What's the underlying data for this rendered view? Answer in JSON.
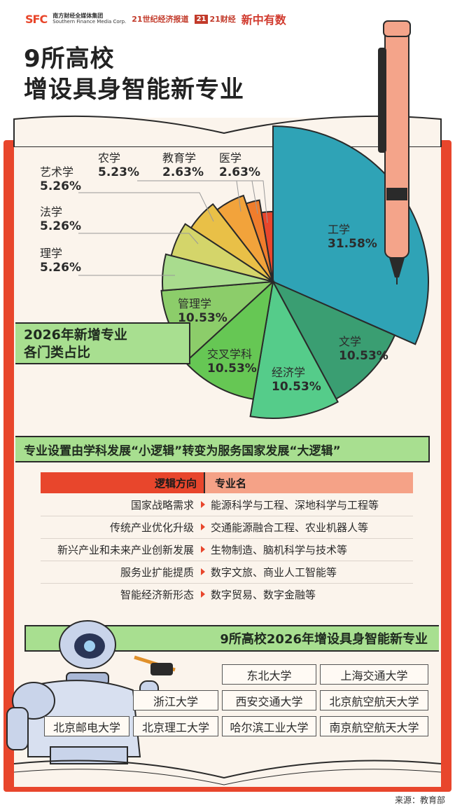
{
  "header": {
    "logo_sfc": "SFC",
    "logo_sfc_cn": "南方财经全媒体集团",
    "logo_sfc_en": "Southern Finance Media Corp.",
    "logo_21": "21世纪经济报道",
    "logo_21caijing_mark": "21",
    "logo_21caijing": "21财经",
    "logo_xin": "新中有数"
  },
  "title": {
    "line1": "9所高校",
    "line2": "增设具身智能新专业"
  },
  "pie_section": {
    "banner_line1": "2026年新增专业",
    "banner_line2": "各门类占比",
    "slices": [
      {
        "name": "工学",
        "value": "31.58%"
      },
      {
        "name": "文学",
        "value": "10.53%"
      },
      {
        "name": "经济学",
        "value": "10.53%"
      },
      {
        "name": "交叉学科",
        "value": "10.53%"
      },
      {
        "name": "管理学",
        "value": "10.53%"
      },
      {
        "name": "理学",
        "value": "5.26%"
      },
      {
        "name": "法学",
        "value": "5.26%"
      },
      {
        "name": "艺术学",
        "value": "5.26%"
      },
      {
        "name": "农学",
        "value": "5.23%"
      },
      {
        "name": "教育学",
        "value": "2.63%"
      },
      {
        "name": "医学",
        "value": "2.63%"
      }
    ]
  },
  "chart_data": {
    "type": "pie",
    "categories": [
      "工学",
      "文学",
      "经济学",
      "交叉学科",
      "管理学",
      "理学",
      "法学",
      "艺术学",
      "农学",
      "教育学",
      "医学"
    ],
    "values": [
      31.58,
      10.53,
      10.53,
      10.53,
      10.53,
      5.26,
      5.26,
      5.26,
      5.23,
      2.63,
      2.63
    ],
    "colors": [
      "#2fa3b6",
      "#3a9e72",
      "#55cc8a",
      "#66c754",
      "#8ccd6a",
      "#a9dc8e",
      "#d4d56a",
      "#e9c047",
      "#f2a33b",
      "#f07d2c",
      "#e8462c"
    ],
    "title": "2026年新增专业各门类占比"
  },
  "logic_section": {
    "banner": "专业设置由学科发展“小逻辑”转变为服务国家发展“大逻辑”",
    "header_left": "逻辑方向",
    "header_right": "专业名",
    "rows": [
      {
        "direction": "国家战略需求",
        "majors": "能源科学与工程、深地科学与工程等"
      },
      {
        "direction": "传统产业优化升级",
        "majors": "交通能源融合工程、农业机器人等"
      },
      {
        "direction": "新兴产业和未来产业创新发展",
        "majors": "生物制造、脑机科学与技术等"
      },
      {
        "direction": "服务业扩能提质",
        "majors": "数字文旅、商业人工智能等"
      },
      {
        "direction": "智能经济新形态",
        "majors": "数字贸易、数字金融等"
      }
    ]
  },
  "universities_section": {
    "banner": "9所高校2026年增设具身智能新专业",
    "list": [
      "东北大学",
      "上海交通大学",
      "浙江大学",
      "西安交通大学",
      "北京航空航天大学",
      "北京邮电大学",
      "北京理工大学",
      "哈尔滨工业大学",
      "南京航空航天大学"
    ]
  },
  "source": "来源：教育部"
}
